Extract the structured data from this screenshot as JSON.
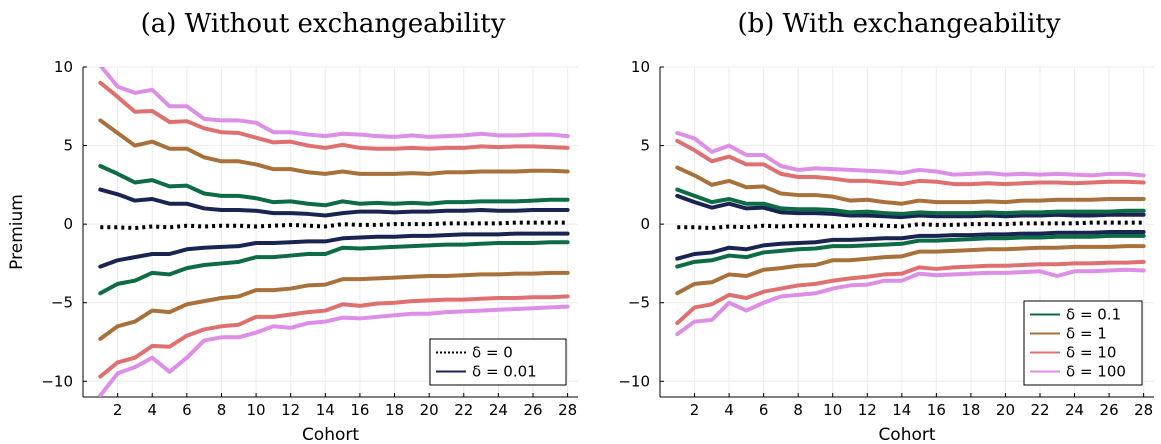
{
  "chart_data": [
    {
      "type": "line",
      "title": "(a) Without exchangeability",
      "xlabel": "Cohort",
      "ylabel": "Premium",
      "xlim": [
        0,
        28.6
      ],
      "ylim": [
        -11,
        10
      ],
      "xticks": [
        2,
        4,
        6,
        8,
        10,
        12,
        14,
        16,
        18,
        20,
        22,
        24,
        26,
        28
      ],
      "yticks": [
        -10,
        -5,
        0,
        5,
        10
      ],
      "grid": true,
      "legend_position": "bottom-right",
      "legend": [
        {
          "label": "δ = 0",
          "color": "#000000",
          "style": "dotted"
        },
        {
          "label": "δ = 0.01",
          "color": "#1a2453",
          "style": "solid"
        }
      ],
      "x": [
        1,
        2,
        3,
        4,
        5,
        6,
        7,
        8,
        9,
        10,
        11,
        12,
        13,
        14,
        15,
        16,
        17,
        18,
        19,
        20,
        21,
        22,
        23,
        24,
        25,
        26,
        27,
        28
      ],
      "series": [
        {
          "group": "δ = 0",
          "color": "#000000",
          "style": "dotted",
          "values": [
            -0.2,
            -0.2,
            -0.25,
            -0.15,
            -0.2,
            -0.1,
            -0.15,
            -0.1,
            -0.1,
            -0.15,
            -0.1,
            -0.05,
            -0.1,
            -0.15,
            0.0,
            -0.05,
            -0.05,
            0.0,
            0.0,
            0.0,
            0.05,
            0.05,
            0.05,
            0.05,
            0.1,
            0.1,
            0.1,
            0.1
          ]
        },
        {
          "group": "δ = 0.01",
          "color": "#1a2453",
          "style": "solid",
          "values": [
            2.2,
            1.9,
            1.5,
            1.6,
            1.3,
            1.3,
            1.0,
            0.9,
            0.9,
            0.85,
            0.7,
            0.7,
            0.65,
            0.55,
            0.7,
            0.8,
            0.8,
            0.75,
            0.8,
            0.8,
            0.85,
            0.85,
            0.9,
            0.85,
            0.85,
            0.9,
            0.9,
            0.9
          ]
        },
        {
          "group": "δ = 0.01",
          "color": "#1a2453",
          "style": "solid",
          "values": [
            -2.7,
            -2.3,
            -2.1,
            -1.9,
            -1.9,
            -1.6,
            -1.5,
            -1.45,
            -1.4,
            -1.2,
            -1.2,
            -1.15,
            -1.1,
            -1.1,
            -0.9,
            -0.85,
            -0.8,
            -0.8,
            -0.75,
            -0.75,
            -0.7,
            -0.65,
            -0.65,
            -0.65,
            -0.6,
            -0.6,
            -0.6,
            -0.6
          ]
        },
        {
          "group": "δ = 0.1",
          "color": "#0d6b45",
          "style": "solid",
          "values": [
            3.7,
            3.2,
            2.65,
            2.8,
            2.4,
            2.45,
            1.95,
            1.8,
            1.8,
            1.65,
            1.4,
            1.45,
            1.3,
            1.2,
            1.45,
            1.3,
            1.35,
            1.3,
            1.35,
            1.3,
            1.4,
            1.4,
            1.45,
            1.45,
            1.45,
            1.5,
            1.55,
            1.55
          ]
        },
        {
          "group": "δ = 0.1",
          "color": "#0d6b45",
          "style": "solid",
          "values": [
            -4.4,
            -3.8,
            -3.6,
            -3.1,
            -3.2,
            -2.8,
            -2.6,
            -2.5,
            -2.4,
            -2.1,
            -2.1,
            -2.0,
            -1.9,
            -1.9,
            -1.5,
            -1.55,
            -1.5,
            -1.45,
            -1.4,
            -1.35,
            -1.3,
            -1.3,
            -1.25,
            -1.2,
            -1.2,
            -1.2,
            -1.15,
            -1.15
          ]
        },
        {
          "group": "δ = 1",
          "color": "#a8703a",
          "style": "solid",
          "values": [
            6.6,
            5.8,
            5.0,
            5.25,
            4.8,
            4.8,
            4.25,
            4.0,
            4.0,
            3.8,
            3.5,
            3.5,
            3.3,
            3.2,
            3.35,
            3.2,
            3.2,
            3.2,
            3.25,
            3.2,
            3.3,
            3.3,
            3.35,
            3.35,
            3.35,
            3.4,
            3.4,
            3.35
          ]
        },
        {
          "group": "δ = 1",
          "color": "#a8703a",
          "style": "solid",
          "values": [
            -7.3,
            -6.5,
            -6.2,
            -5.5,
            -5.6,
            -5.1,
            -4.9,
            -4.7,
            -4.6,
            -4.2,
            -4.2,
            -4.1,
            -3.9,
            -3.85,
            -3.5,
            -3.5,
            -3.45,
            -3.4,
            -3.35,
            -3.3,
            -3.3,
            -3.25,
            -3.2,
            -3.2,
            -3.15,
            -3.15,
            -3.1,
            -3.1
          ]
        },
        {
          "group": "δ = 10",
          "color": "#e07070",
          "style": "solid",
          "values": [
            9.0,
            8.1,
            7.15,
            7.2,
            6.5,
            6.55,
            6.1,
            5.85,
            5.8,
            5.5,
            5.2,
            5.25,
            5.0,
            4.85,
            5.05,
            4.85,
            4.8,
            4.8,
            4.85,
            4.8,
            4.85,
            4.85,
            4.95,
            4.9,
            4.95,
            4.95,
            4.9,
            4.85
          ]
        },
        {
          "group": "δ = 10",
          "color": "#e07070",
          "style": "solid",
          "values": [
            -9.7,
            -8.8,
            -8.5,
            -7.75,
            -7.8,
            -7.1,
            -6.7,
            -6.5,
            -6.4,
            -5.9,
            -5.9,
            -5.75,
            -5.6,
            -5.5,
            -5.1,
            -5.2,
            -5.05,
            -5.0,
            -4.9,
            -4.85,
            -4.8,
            -4.8,
            -4.75,
            -4.7,
            -4.7,
            -4.65,
            -4.65,
            -4.6
          ]
        },
        {
          "group": "δ = 100",
          "color": "#dd8ee6",
          "style": "solid",
          "values": [
            10.1,
            8.75,
            8.35,
            8.55,
            7.5,
            7.5,
            6.7,
            6.6,
            6.6,
            6.45,
            5.85,
            5.85,
            5.7,
            5.6,
            5.75,
            5.7,
            5.6,
            5.55,
            5.65,
            5.55,
            5.6,
            5.65,
            5.75,
            5.65,
            5.65,
            5.7,
            5.7,
            5.6
          ]
        },
        {
          "group": "δ = 100",
          "color": "#dd8ee6",
          "style": "solid",
          "values": [
            -10.9,
            -9.5,
            -9.1,
            -8.5,
            -9.4,
            -8.5,
            -7.4,
            -7.2,
            -7.2,
            -6.9,
            -6.5,
            -6.6,
            -6.3,
            -6.2,
            -5.95,
            -6.0,
            -5.9,
            -5.8,
            -5.7,
            -5.7,
            -5.6,
            -5.55,
            -5.5,
            -5.45,
            -5.4,
            -5.35,
            -5.3,
            -5.25
          ]
        }
      ]
    },
    {
      "type": "line",
      "title": "(b) With exchangeability",
      "xlabel": "Cohort",
      "ylabel": "",
      "xlim": [
        0,
        28.6
      ],
      "ylim": [
        -11,
        10
      ],
      "xticks": [
        2,
        4,
        6,
        8,
        10,
        12,
        14,
        16,
        18,
        20,
        22,
        24,
        26,
        28
      ],
      "yticks": [
        -10,
        -5,
        0,
        5,
        10
      ],
      "grid": true,
      "legend_position": "bottom-right",
      "legend": [
        {
          "label": "δ = 0.1",
          "color": "#0d6b45",
          "style": "solid"
        },
        {
          "label": "δ = 1",
          "color": "#a8703a",
          "style": "solid"
        },
        {
          "label": "δ = 10",
          "color": "#e07070",
          "style": "solid"
        },
        {
          "label": "δ = 100",
          "color": "#dd8ee6",
          "style": "solid"
        }
      ],
      "x": [
        1,
        2,
        3,
        4,
        5,
        6,
        7,
        8,
        9,
        10,
        11,
        12,
        13,
        14,
        15,
        16,
        17,
        18,
        19,
        20,
        21,
        22,
        23,
        24,
        25,
        26,
        27,
        28
      ],
      "series": [
        {
          "group": "δ = 0",
          "color": "#000000",
          "style": "dotted",
          "values": [
            -0.2,
            -0.2,
            -0.25,
            -0.15,
            -0.2,
            -0.1,
            -0.15,
            -0.1,
            -0.1,
            -0.15,
            -0.1,
            -0.05,
            -0.1,
            -0.15,
            0.0,
            -0.05,
            -0.05,
            0.0,
            0.0,
            0.0,
            0.05,
            0.05,
            0.05,
            0.05,
            0.1,
            0.1,
            0.1,
            0.1
          ]
        },
        {
          "group": "δ = 0.01",
          "color": "#1a2453",
          "style": "solid",
          "values": [
            1.8,
            1.4,
            1.05,
            1.3,
            1.0,
            1.05,
            0.75,
            0.7,
            0.7,
            0.65,
            0.55,
            0.55,
            0.5,
            0.45,
            0.55,
            0.5,
            0.5,
            0.5,
            0.55,
            0.5,
            0.55,
            0.55,
            0.6,
            0.55,
            0.55,
            0.6,
            0.6,
            0.6
          ]
        },
        {
          "group": "δ = 0.01",
          "color": "#1a2453",
          "style": "solid",
          "values": [
            -2.2,
            -1.9,
            -1.8,
            -1.5,
            -1.6,
            -1.35,
            -1.25,
            -1.2,
            -1.15,
            -1.0,
            -1.0,
            -0.95,
            -0.9,
            -0.9,
            -0.75,
            -0.75,
            -0.7,
            -0.7,
            -0.65,
            -0.65,
            -0.6,
            -0.6,
            -0.55,
            -0.55,
            -0.55,
            -0.5,
            -0.5,
            -0.5
          ]
        },
        {
          "group": "δ = 0.1",
          "color": "#0d6b45",
          "style": "solid",
          "values": [
            2.2,
            1.8,
            1.4,
            1.6,
            1.3,
            1.3,
            1.0,
            0.95,
            0.95,
            0.9,
            0.75,
            0.8,
            0.7,
            0.65,
            0.75,
            0.7,
            0.7,
            0.7,
            0.75,
            0.7,
            0.75,
            0.75,
            0.8,
            0.8,
            0.8,
            0.8,
            0.85,
            0.85
          ]
        },
        {
          "group": "δ = 0.1",
          "color": "#0d6b45",
          "style": "solid",
          "values": [
            -2.7,
            -2.4,
            -2.3,
            -2.0,
            -2.1,
            -1.8,
            -1.7,
            -1.6,
            -1.55,
            -1.4,
            -1.4,
            -1.35,
            -1.3,
            -1.25,
            -1.05,
            -1.05,
            -1.0,
            -0.95,
            -0.9,
            -0.9,
            -0.85,
            -0.85,
            -0.8,
            -0.8,
            -0.8,
            -0.75,
            -0.75,
            -0.75
          ]
        },
        {
          "group": "δ = 1",
          "color": "#a8703a",
          "style": "solid",
          "values": [
            3.6,
            3.1,
            2.5,
            2.75,
            2.35,
            2.4,
            1.95,
            1.85,
            1.85,
            1.75,
            1.5,
            1.55,
            1.4,
            1.3,
            1.5,
            1.4,
            1.4,
            1.4,
            1.45,
            1.4,
            1.5,
            1.5,
            1.55,
            1.55,
            1.55,
            1.6,
            1.6,
            1.6
          ]
        },
        {
          "group": "δ = 1",
          "color": "#a8703a",
          "style": "solid",
          "values": [
            -4.4,
            -3.8,
            -3.7,
            -3.2,
            -3.3,
            -2.9,
            -2.8,
            -2.65,
            -2.6,
            -2.3,
            -2.3,
            -2.2,
            -2.1,
            -2.05,
            -1.75,
            -1.75,
            -1.7,
            -1.65,
            -1.6,
            -1.6,
            -1.55,
            -1.5,
            -1.5,
            -1.45,
            -1.45,
            -1.45,
            -1.4,
            -1.4
          ]
        },
        {
          "group": "δ = 10",
          "color": "#e07070",
          "style": "solid",
          "values": [
            5.3,
            4.7,
            4.0,
            4.3,
            3.8,
            3.8,
            3.2,
            3.0,
            3.0,
            2.9,
            2.75,
            2.75,
            2.65,
            2.55,
            2.75,
            2.7,
            2.55,
            2.55,
            2.6,
            2.55,
            2.6,
            2.65,
            2.65,
            2.6,
            2.65,
            2.7,
            2.7,
            2.65
          ]
        },
        {
          "group": "δ = 10",
          "color": "#e07070",
          "style": "solid",
          "values": [
            -6.3,
            -5.3,
            -5.1,
            -4.5,
            -4.7,
            -4.3,
            -4.1,
            -3.9,
            -3.8,
            -3.6,
            -3.45,
            -3.35,
            -3.2,
            -3.15,
            -2.75,
            -2.85,
            -2.75,
            -2.7,
            -2.65,
            -2.65,
            -2.6,
            -2.55,
            -2.55,
            -2.5,
            -2.5,
            -2.45,
            -2.45,
            -2.4
          ]
        },
        {
          "group": "δ = 100",
          "color": "#dd8ee6",
          "style": "solid",
          "values": [
            5.8,
            5.45,
            4.6,
            5.0,
            4.4,
            4.4,
            3.7,
            3.45,
            3.55,
            3.5,
            3.45,
            3.4,
            3.35,
            3.25,
            3.45,
            3.35,
            3.15,
            3.2,
            3.25,
            3.15,
            3.2,
            3.15,
            3.2,
            3.15,
            3.1,
            3.2,
            3.2,
            3.1
          ]
        },
        {
          "group": "δ = 100",
          "color": "#dd8ee6",
          "style": "solid",
          "values": [
            -7.0,
            -6.2,
            -6.1,
            -5.0,
            -5.5,
            -5.0,
            -4.6,
            -4.5,
            -4.4,
            -4.1,
            -3.9,
            -3.85,
            -3.6,
            -3.6,
            -3.15,
            -3.25,
            -3.2,
            -3.15,
            -3.1,
            -3.1,
            -3.05,
            -3.0,
            -3.3,
            -3.0,
            -3.0,
            -2.95,
            -2.9,
            -2.95
          ]
        }
      ]
    }
  ]
}
